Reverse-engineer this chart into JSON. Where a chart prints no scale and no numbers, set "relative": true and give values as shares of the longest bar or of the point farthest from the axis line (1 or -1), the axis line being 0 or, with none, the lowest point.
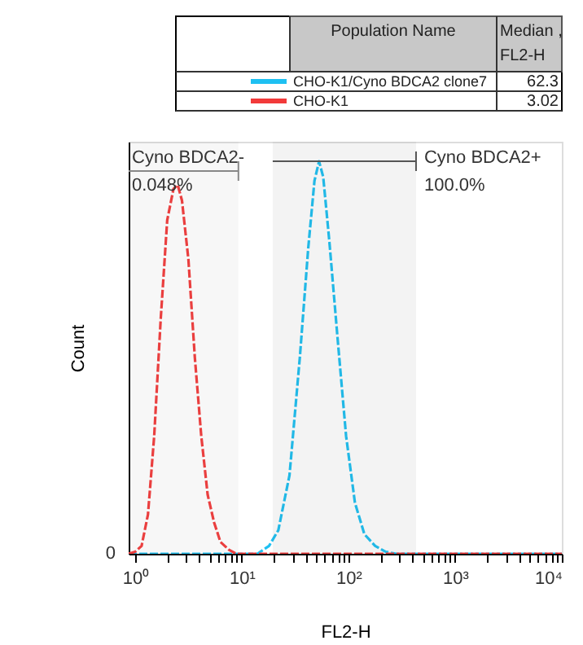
{
  "chart_data": {
    "type": "line",
    "relative": true,
    "xlabel": "FL2-H",
    "ylabel": "Count",
    "log": "x",
    "xlim": [
      0.87,
      10000
    ],
    "xticks": [
      {
        "value": 1,
        "label": "10⁰"
      },
      {
        "value": 2,
        "label": null
      },
      {
        "value": 3,
        "label": null
      },
      {
        "value": 4,
        "label": null
      },
      {
        "value": 5,
        "label": null
      },
      {
        "value": 6,
        "label": null
      },
      {
        "value": 7,
        "label": null
      },
      {
        "value": 8,
        "label": null
      },
      {
        "value": 9,
        "label": null
      },
      {
        "value": 10,
        "label": "10¹"
      },
      {
        "value": 20,
        "label": null
      },
      {
        "value": 30,
        "label": null
      },
      {
        "value": 40,
        "label": null
      },
      {
        "value": 50,
        "label": null
      },
      {
        "value": 60,
        "label": null
      },
      {
        "value": 70,
        "label": null
      },
      {
        "value": 80,
        "label": null
      },
      {
        "value": 90,
        "label": null
      },
      {
        "value": 100,
        "label": "10²"
      },
      {
        "value": 200,
        "label": null
      },
      {
        "value": 300,
        "label": null
      },
      {
        "value": 400,
        "label": null
      },
      {
        "value": 500,
        "label": null
      },
      {
        "value": 600,
        "label": null
      },
      {
        "value": 700,
        "label": null
      },
      {
        "value": 800,
        "label": null
      },
      {
        "value": 900,
        "label": null
      },
      {
        "value": 1000,
        "label": "10³"
      },
      {
        "value": 2000,
        "label": null
      },
      {
        "value": 3000,
        "label": null
      },
      {
        "value": 4000,
        "label": null
      },
      {
        "value": 5000,
        "label": null
      },
      {
        "value": 6000,
        "label": null
      },
      {
        "value": 7000,
        "label": null
      },
      {
        "value": 8000,
        "label": null
      },
      {
        "value": 9000,
        "label": null
      },
      {
        "value": 10000,
        "label": "10⁴"
      }
    ],
    "grid": false,
    "legend": "top",
    "line_style": "dashed",
    "series": [
      {
        "name": "CHO-K1/Cyno BDCA2  clone7",
        "color": "#1ec0f2",
        "x": [
          0.87,
          14,
          18,
          22,
          28,
          35,
          42,
          48,
          53,
          58,
          66,
          79,
          95,
          115,
          141,
          178,
          224,
          282,
          10000
        ],
        "values": [
          0,
          0,
          0.02,
          0.06,
          0.2,
          0.5,
          0.78,
          0.95,
          1.0,
          0.96,
          0.8,
          0.55,
          0.3,
          0.13,
          0.05,
          0.02,
          0.005,
          0,
          0
        ]
      },
      {
        "name": "CHO-K1",
        "color": "#f23a3a",
        "x": [
          0.87,
          1,
          1.15,
          1.32,
          1.51,
          1.74,
          2.0,
          2.29,
          2.51,
          2.75,
          3.16,
          3.63,
          4.17,
          4.79,
          5.5,
          6.31,
          7.59,
          8.9,
          10000
        ],
        "values": [
          0,
          0.005,
          0.02,
          0.1,
          0.3,
          0.6,
          0.85,
          0.93,
          0.94,
          0.9,
          0.75,
          0.5,
          0.3,
          0.15,
          0.08,
          0.03,
          0.01,
          0,
          0
        ]
      }
    ],
    "bands": [
      {
        "axis": "x",
        "from": 0.87,
        "to": 9.3,
        "label": "Cyno BDCA2-\n0.048%",
        "color": "#888888"
      },
      {
        "axis": "x",
        "from": 19.5,
        "to": 430,
        "label": "Cyno BDCA2+\n100.0%",
        "color": "#555555"
      }
    ],
    "annotations": [
      "Population Name",
      "Median , FL2-H",
      "62.3",
      "3.02",
      "0"
    ]
  }
}
